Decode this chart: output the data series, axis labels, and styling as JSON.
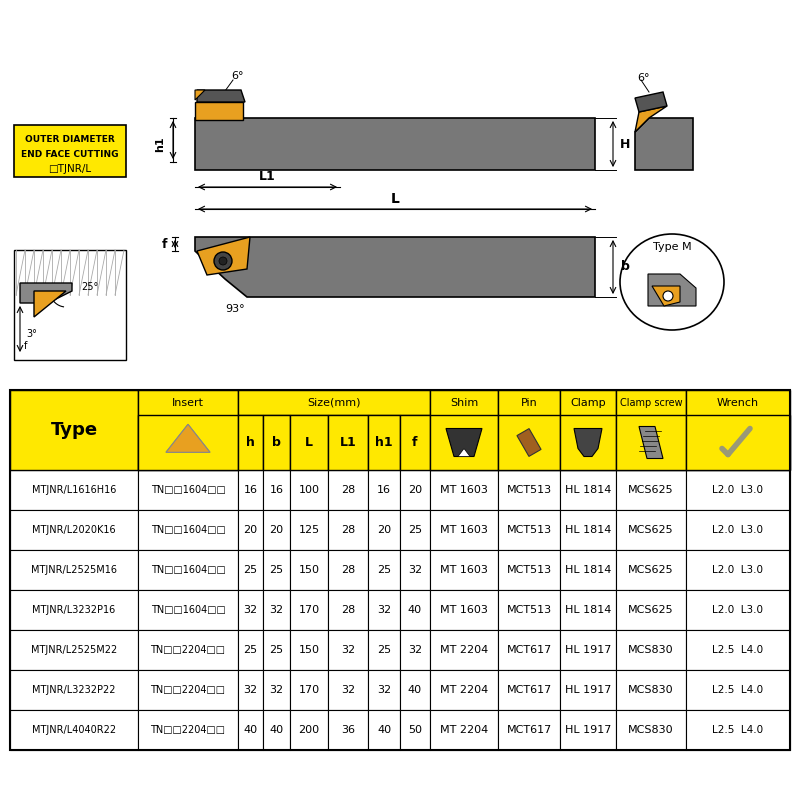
{
  "bg_color": "#ffffff",
  "table_header_bg": "#FFE800",
  "rows": [
    [
      "MTJNR/L1616H16",
      "TN□□1604□□",
      "16",
      "16",
      "100",
      "28",
      "16",
      "20",
      "MT 1603",
      "MCT513",
      "HL 1814",
      "MCS625",
      "L2.0  L3.0"
    ],
    [
      "MTJNR/L2020K16",
      "TN□□1604□□",
      "20",
      "20",
      "125",
      "28",
      "20",
      "25",
      "MT 1603",
      "MCT513",
      "HL 1814",
      "MCS625",
      "L2.0  L3.0"
    ],
    [
      "MTJNR/L2525M16",
      "TN□□1604□□",
      "25",
      "25",
      "150",
      "28",
      "25",
      "32",
      "MT 1603",
      "MCT513",
      "HL 1814",
      "MCS625",
      "L2.0  L3.0"
    ],
    [
      "MTJNR/L3232P16",
      "TN□□1604□□",
      "32",
      "32",
      "170",
      "28",
      "32",
      "40",
      "MT 1603",
      "MCT513",
      "HL 1814",
      "MCS625",
      "L2.0  L3.0"
    ],
    [
      "MTJNR/L2525M22",
      "TN□□2204□□",
      "25",
      "25",
      "150",
      "32",
      "25",
      "32",
      "MT 2204",
      "MCT617",
      "HL 1917",
      "MCS830",
      "L2.5  L4.0"
    ],
    [
      "MTJNR/L3232P22",
      "TN□□2204□□",
      "32",
      "32",
      "170",
      "32",
      "32",
      "40",
      "MT 2204",
      "MCT617",
      "HL 1917",
      "MCS830",
      "L2.5  L4.0"
    ],
    [
      "MTJNR/L4040R22",
      "TN□□2204□□",
      "40",
      "40",
      "200",
      "36",
      "40",
      "50",
      "MT 2204",
      "MCT617",
      "HL 1917",
      "MCS830",
      "L2.5  L4.0"
    ]
  ],
  "outer_box_text1": "OUTER DIAMETER",
  "outer_box_text2": "END FACE CUTTING",
  "outer_box_text3": "□TJNR/L",
  "type_m_label": "Type M",
  "diagram_label_6deg_top": "6°",
  "diagram_label_6deg_side": "6°",
  "diagram_label_L": "L",
  "diagram_label_L1": "L1",
  "diagram_label_h1": "h1",
  "diagram_label_H": "H",
  "diagram_label_b": "b",
  "diagram_label_f": "f",
  "diagram_label_93deg": "93°",
  "diagram_label_25deg": "25°",
  "diagram_label_3deg": "3°"
}
